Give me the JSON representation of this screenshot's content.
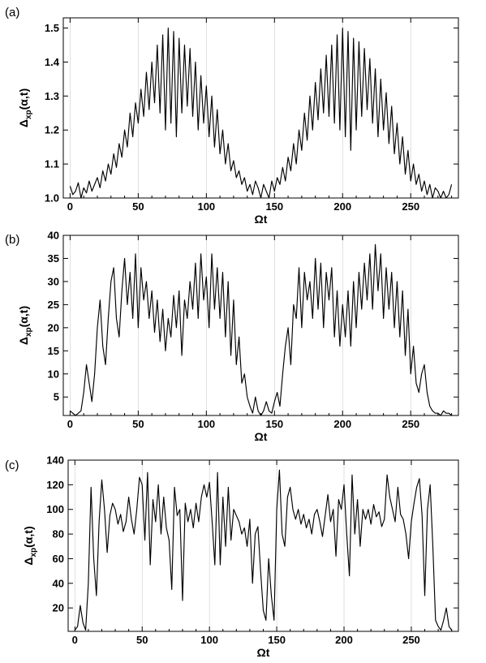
{
  "chart_data": [
    {
      "type": "line",
      "panel_label": "(a)",
      "xlabel": "Ωt",
      "ylabel": {
        "main": "Δ",
        "sub": "xp",
        "rest": "(α,t)"
      },
      "xlim": [
        -5,
        285
      ],
      "ylim": [
        1.0,
        1.53
      ],
      "xticks": [
        0,
        50,
        100,
        150,
        200,
        250
      ],
      "yticks": [
        1.0,
        1.1,
        1.2,
        1.3,
        1.4,
        1.5
      ],
      "ytick_labels": [
        "1.0",
        "1.1",
        "1.2",
        "1.3",
        "1.4",
        "1.5"
      ],
      "grid": false,
      "color": "#000000",
      "x": [
        0,
        2,
        4,
        6,
        8,
        10,
        12,
        14,
        16,
        18,
        20,
        22,
        24,
        26,
        28,
        30,
        32,
        34,
        36,
        38,
        40,
        42,
        44,
        46,
        48,
        50,
        52,
        54,
        56,
        58,
        60,
        62,
        64,
        66,
        68,
        70,
        72,
        74,
        76,
        78,
        80,
        82,
        84,
        86,
        88,
        90,
        92,
        94,
        96,
        98,
        100,
        102,
        104,
        106,
        108,
        110,
        112,
        114,
        116,
        118,
        120,
        122,
        124,
        126,
        128,
        130,
        132,
        134,
        136,
        138,
        140,
        142,
        144,
        146,
        148,
        150,
        152,
        154,
        156,
        158,
        160,
        162,
        164,
        166,
        168,
        170,
        172,
        174,
        176,
        178,
        180,
        182,
        184,
        186,
        188,
        190,
        192,
        194,
        196,
        198,
        200,
        202,
        204,
        206,
        208,
        210,
        212,
        214,
        216,
        218,
        220,
        222,
        224,
        226,
        228,
        230,
        232,
        234,
        236,
        238,
        240,
        242,
        244,
        246,
        248,
        250,
        252,
        254,
        256,
        258,
        260,
        262,
        264,
        266,
        268,
        270,
        272,
        274,
        276,
        278,
        280
      ],
      "y": [
        1.035,
        1.01,
        1.02,
        1.045,
        1.0,
        1.03,
        1.015,
        1.05,
        1.02,
        1.04,
        1.06,
        1.03,
        1.08,
        1.05,
        1.1,
        1.07,
        1.13,
        1.09,
        1.16,
        1.12,
        1.2,
        1.15,
        1.25,
        1.18,
        1.28,
        1.22,
        1.32,
        1.24,
        1.37,
        1.26,
        1.4,
        1.28,
        1.45,
        1.25,
        1.48,
        1.2,
        1.5,
        1.22,
        1.49,
        1.18,
        1.47,
        1.25,
        1.45,
        1.27,
        1.44,
        1.24,
        1.4,
        1.2,
        1.36,
        1.22,
        1.33,
        1.18,
        1.3,
        1.15,
        1.26,
        1.13,
        1.2,
        1.1,
        1.16,
        1.08,
        1.11,
        1.06,
        1.08,
        1.04,
        1.06,
        1.02,
        1.04,
        1.01,
        1.05,
        1.03,
        1.0,
        1.04,
        1.02,
        1.0,
        1.05,
        1.02,
        1.06,
        1.04,
        1.09,
        1.05,
        1.12,
        1.08,
        1.16,
        1.1,
        1.2,
        1.14,
        1.25,
        1.17,
        1.3,
        1.2,
        1.34,
        1.23,
        1.38,
        1.25,
        1.42,
        1.24,
        1.45,
        1.22,
        1.48,
        1.2,
        1.5,
        1.18,
        1.49,
        1.14,
        1.47,
        1.2,
        1.46,
        1.24,
        1.44,
        1.26,
        1.41,
        1.22,
        1.38,
        1.18,
        1.35,
        1.2,
        1.31,
        1.16,
        1.27,
        1.13,
        1.22,
        1.1,
        1.18,
        1.07,
        1.14,
        1.05,
        1.1,
        1.04,
        1.07,
        1.02,
        1.05,
        1.01,
        1.04,
        1.0,
        1.03,
        1.02,
        1.0,
        1.02,
        1.0,
        1.01,
        1.04
      ]
    },
    {
      "type": "line",
      "panel_label": "(b)",
      "xlabel": "Ωt",
      "ylabel": {
        "main": "Δ",
        "sub": "xp",
        "rest": "(α,t)"
      },
      "xlim": [
        -5,
        285
      ],
      "ylim": [
        1,
        40
      ],
      "xticks": [
        0,
        50,
        100,
        150,
        200,
        250
      ],
      "yticks": [
        5,
        10,
        15,
        20,
        25,
        30,
        35,
        40
      ],
      "ytick_labels": [
        "5",
        "10",
        "15",
        "20",
        "25",
        "30",
        "35",
        "40"
      ],
      "grid": false,
      "color": "#000000",
      "x": [
        0,
        2,
        4,
        6,
        8,
        10,
        12,
        14,
        16,
        18,
        20,
        22,
        24,
        26,
        28,
        30,
        32,
        34,
        36,
        38,
        40,
        42,
        44,
        46,
        48,
        50,
        52,
        54,
        56,
        58,
        60,
        62,
        64,
        66,
        68,
        70,
        72,
        74,
        76,
        78,
        80,
        82,
        84,
        86,
        88,
        90,
        92,
        94,
        96,
        98,
        100,
        102,
        104,
        106,
        108,
        110,
        112,
        114,
        116,
        118,
        120,
        122,
        124,
        126,
        128,
        130,
        132,
        134,
        136,
        138,
        140,
        142,
        144,
        146,
        148,
        150,
        152,
        154,
        156,
        158,
        160,
        162,
        164,
        166,
        168,
        170,
        172,
        174,
        176,
        178,
        180,
        182,
        184,
        186,
        188,
        190,
        192,
        194,
        196,
        198,
        200,
        202,
        204,
        206,
        208,
        210,
        212,
        214,
        216,
        218,
        220,
        222,
        224,
        226,
        228,
        230,
        232,
        234,
        236,
        238,
        240,
        242,
        244,
        246,
        248,
        250,
        252,
        254,
        256,
        258,
        260,
        262,
        264,
        266,
        268,
        270,
        272,
        274,
        276,
        278,
        280
      ],
      "y": [
        2,
        1.5,
        1,
        1.5,
        2,
        6,
        12,
        8,
        4,
        10,
        20,
        26,
        16,
        12,
        22,
        30,
        33,
        22,
        18,
        28,
        35,
        25,
        32,
        22,
        36,
        20,
        33,
        26,
        30,
        22,
        28,
        19,
        26,
        17,
        24,
        15,
        22,
        18,
        27,
        20,
        28,
        14,
        26,
        22,
        30,
        24,
        34,
        22,
        36,
        26,
        31,
        20,
        36,
        24,
        33,
        22,
        32,
        18,
        30,
        14,
        26,
        12,
        18,
        8,
        10,
        5,
        3,
        1.5,
        5,
        2,
        1,
        2,
        4,
        2,
        1.5,
        4,
        6,
        3,
        10,
        16,
        20,
        12,
        25,
        22,
        33,
        20,
        32,
        26,
        30,
        22,
        35,
        24,
        34,
        20,
        32,
        26,
        33,
        18,
        28,
        16,
        25,
        18,
        28,
        16,
        30,
        20,
        32,
        24,
        34,
        26,
        36,
        24,
        38,
        28,
        36,
        22,
        33,
        24,
        32,
        20,
        30,
        18,
        28,
        14,
        24,
        10,
        16,
        8,
        6,
        10,
        12,
        6,
        3,
        2,
        1.5,
        1.5,
        1,
        2,
        1.5,
        1.5,
        1
      ]
    },
    {
      "type": "line",
      "panel_label": "(c)",
      "xlabel": "Ωt",
      "ylabel": {
        "main": "Δ",
        "sub": "xp",
        "rest": "(α,t)"
      },
      "xlim": [
        -5,
        285
      ],
      "ylim": [
        1,
        140
      ],
      "xticks": [
        0,
        50,
        100,
        150,
        200,
        250
      ],
      "yticks": [
        20,
        40,
        60,
        80,
        100,
        120,
        140
      ],
      "ytick_labels": [
        "20",
        "40",
        "60",
        "80",
        "100",
        "120",
        "140"
      ],
      "grid": false,
      "color": "#000000",
      "x": [
        0,
        2,
        4,
        6,
        8,
        10,
        12,
        14,
        16,
        18,
        20,
        22,
        24,
        26,
        28,
        30,
        32,
        34,
        36,
        38,
        40,
        42,
        44,
        46,
        48,
        50,
        52,
        54,
        56,
        58,
        60,
        62,
        64,
        66,
        68,
        70,
        72,
        74,
        76,
        78,
        80,
        82,
        84,
        86,
        88,
        90,
        92,
        94,
        96,
        98,
        100,
        102,
        104,
        106,
        108,
        110,
        112,
        114,
        116,
        118,
        120,
        122,
        124,
        126,
        128,
        130,
        132,
        134,
        136,
        138,
        140,
        142,
        144,
        146,
        148,
        150,
        152,
        154,
        156,
        158,
        160,
        162,
        164,
        166,
        168,
        170,
        172,
        174,
        176,
        178,
        180,
        182,
        184,
        186,
        188,
        190,
        192,
        194,
        196,
        198,
        200,
        202,
        204,
        206,
        208,
        210,
        212,
        214,
        216,
        218,
        220,
        222,
        224,
        226,
        228,
        230,
        232,
        234,
        236,
        238,
        240,
        242,
        244,
        246,
        248,
        250,
        252,
        254,
        256,
        258,
        260,
        262,
        264,
        266,
        268,
        270,
        272,
        274,
        276,
        278,
        280
      ],
      "y": [
        2,
        5,
        22,
        8,
        2,
        40,
        118,
        60,
        30,
        90,
        124,
        100,
        65,
        95,
        105,
        100,
        88,
        96,
        82,
        90,
        110,
        92,
        80,
        100,
        126,
        120,
        75,
        130,
        55,
        108,
        90,
        120,
        80,
        110,
        85,
        75,
        35,
        118,
        95,
        100,
        26,
        105,
        90,
        100,
        85,
        105,
        90,
        110,
        120,
        110,
        122,
        90,
        55,
        130,
        55,
        110,
        70,
        118,
        75,
        100,
        95,
        90,
        80,
        85,
        70,
        92,
        40,
        80,
        86,
        50,
        18,
        10,
        60,
        30,
        10,
        100,
        132,
        80,
        70,
        110,
        118,
        100,
        92,
        100,
        88,
        96,
        85,
        92,
        80,
        96,
        100,
        90,
        78,
        95,
        112,
        90,
        100,
        62,
        108,
        100,
        120,
        80,
        46,
        128,
        80,
        108,
        70,
        100,
        92,
        100,
        88,
        104,
        94,
        98,
        86,
        92,
        128,
        110,
        100,
        90,
        118,
        96,
        92,
        80,
        60,
        90,
        105,
        118,
        125,
        95,
        30,
        100,
        120,
        70,
        10,
        5,
        2,
        10,
        20,
        5,
        2
      ]
    }
  ]
}
